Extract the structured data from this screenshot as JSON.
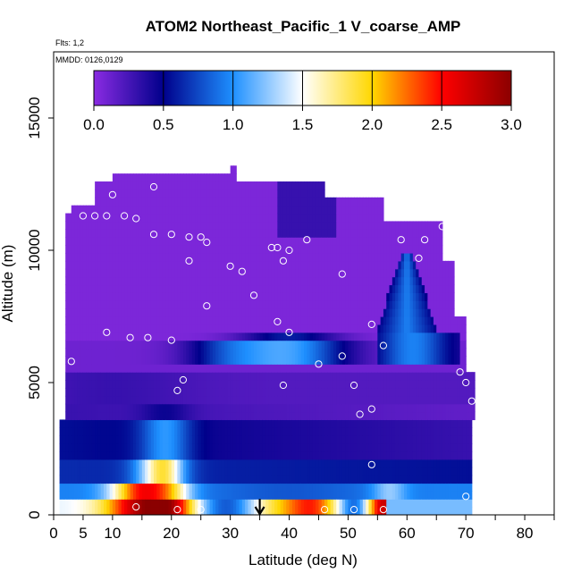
{
  "chart_data": {
    "type": "heatmap",
    "title": "ATOM2 Northeast_Pacific_1 V_coarse_AMP",
    "flights_label": "Flts: 1,2",
    "dates_label": "MMDD: 0126,0129",
    "xlabel": "Latitude (deg N)",
    "ylabel": "Altitude (m)",
    "xlim": [
      0,
      85
    ],
    "ylim": [
      0,
      17500
    ],
    "x_ticks": [
      0,
      5,
      10,
      20,
      30,
      40,
      50,
      60,
      70,
      80
    ],
    "x_tick_labels": [
      "0",
      "5",
      "10",
      "20",
      "30",
      "40",
      "50",
      "60",
      "70",
      "80"
    ],
    "y_ticks": [
      0,
      5000,
      10000,
      15000
    ],
    "y_tick_labels": [
      "0",
      "5000",
      "10000",
      "15000"
    ],
    "colorbar": {
      "range": [
        0,
        3
      ],
      "ticks": [
        0,
        0.5,
        1,
        1.5,
        2,
        2.5,
        3
      ],
      "tick_labels": [
        "0.0",
        "0.5",
        "1.0",
        "1.5",
        "2.0",
        "2.5",
        "3.0"
      ],
      "colors": [
        "#8a2be2",
        "#00008b",
        "#1e90ff",
        "#ffffff",
        "#ffd700",
        "#ff0000",
        "#8b0000"
      ]
    },
    "arrow_latitude": 35,
    "sample_points": [
      {
        "lat": 2,
        "alt": 12100
      },
      {
        "lat": 5,
        "alt": 11300
      },
      {
        "lat": 7,
        "alt": 11300
      },
      {
        "lat": 10,
        "alt": 12100
      },
      {
        "lat": 9,
        "alt": 11300
      },
      {
        "lat": 12,
        "alt": 11300
      },
      {
        "lat": 14,
        "alt": 11200
      },
      {
        "lat": 17,
        "alt": 12400
      },
      {
        "lat": 17,
        "alt": 10600
      },
      {
        "lat": 20,
        "alt": 10600
      },
      {
        "lat": 23,
        "alt": 10500
      },
      {
        "lat": 25,
        "alt": 10500
      },
      {
        "lat": 26,
        "alt": 10300
      },
      {
        "lat": 23,
        "alt": 9600
      },
      {
        "lat": 30,
        "alt": 9400
      },
      {
        "lat": 32,
        "alt": 9200
      },
      {
        "lat": 37,
        "alt": 10100
      },
      {
        "lat": 38,
        "alt": 10100
      },
      {
        "lat": 40,
        "alt": 10000
      },
      {
        "lat": 39,
        "alt": 9600
      },
      {
        "lat": 43,
        "alt": 10400
      },
      {
        "lat": 49,
        "alt": 9100
      },
      {
        "lat": 59,
        "alt": 10400
      },
      {
        "lat": 62,
        "alt": 9700
      },
      {
        "lat": 63,
        "alt": 10400
      },
      {
        "lat": 66,
        "alt": 10900
      },
      {
        "lat": 26,
        "alt": 7900
      },
      {
        "lat": 34,
        "alt": 8300
      },
      {
        "lat": 38,
        "alt": 7300
      },
      {
        "lat": 54,
        "alt": 7200
      },
      {
        "lat": 9,
        "alt": 6900
      },
      {
        "lat": 13,
        "alt": 6700
      },
      {
        "lat": 16,
        "alt": 6700
      },
      {
        "lat": 20,
        "alt": 6600
      },
      {
        "lat": 40,
        "alt": 6900
      },
      {
        "lat": 1,
        "alt": 6500
      },
      {
        "lat": 1,
        "alt": 6400
      },
      {
        "lat": 56,
        "alt": 6400
      },
      {
        "lat": 49,
        "alt": 6000
      },
      {
        "lat": 45,
        "alt": 5700
      },
      {
        "lat": 3,
        "alt": 5800
      },
      {
        "lat": 69,
        "alt": 5400
      },
      {
        "lat": 70,
        "alt": 5000
      },
      {
        "lat": 22,
        "alt": 5100
      },
      {
        "lat": 21,
        "alt": 4700
      },
      {
        "lat": 39,
        "alt": 4900
      },
      {
        "lat": 51,
        "alt": 4900
      },
      {
        "lat": 71,
        "alt": 4300
      },
      {
        "lat": 54,
        "alt": 4000
      },
      {
        "lat": 52,
        "alt": 3800
      },
      {
        "lat": 54,
        "alt": 1900
      },
      {
        "lat": 70,
        "alt": 700
      },
      {
        "lat": 14,
        "alt": 300
      },
      {
        "lat": 21,
        "alt": 200
      },
      {
        "lat": 25,
        "alt": 200
      },
      {
        "lat": 46,
        "alt": 200
      },
      {
        "lat": 51,
        "alt": 200
      },
      {
        "lat": 56,
        "alt": 200
      }
    ]
  }
}
